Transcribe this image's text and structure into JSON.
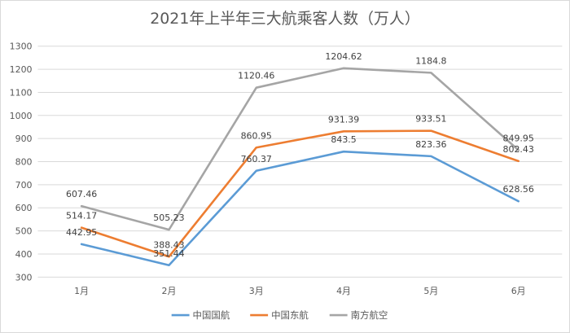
{
  "chart_data": {
    "type": "line",
    "title": "2021年上半年三大航乘客人数（万人）",
    "xlabel": "",
    "ylabel": "",
    "categories": [
      "1月",
      "2月",
      "3月",
      "4月",
      "5月",
      "6月"
    ],
    "ylim": [
      300,
      1300
    ],
    "yticks": [
      300,
      400,
      500,
      600,
      700,
      800,
      900,
      1000,
      1100,
      1200,
      1300
    ],
    "grid": true,
    "legend_position": "bottom",
    "series": [
      {
        "name": "中国国航",
        "color": "#5b9bd5",
        "values": [
          442.95,
          351.44,
          760.37,
          843.5,
          823.36,
          628.56
        ],
        "labels": [
          "442.95",
          "351.44",
          "760.37",
          "843.5",
          "823.36",
          "628.56"
        ]
      },
      {
        "name": "中国东航",
        "color": "#ed7d31",
        "values": [
          514.17,
          388.43,
          860.95,
          931.39,
          933.51,
          802.43
        ],
        "labels": [
          "514.17",
          "388.43",
          "860.95",
          "931.39",
          "933.51",
          "802.43"
        ]
      },
      {
        "name": "南方航空",
        "color": "#a5a5a5",
        "values": [
          607.46,
          505.23,
          1120.46,
          1204.62,
          1184.8,
          849.95
        ],
        "labels": [
          "607.46",
          "505.23",
          "1120.46",
          "1204.62",
          "1184.8",
          "849.95"
        ]
      }
    ]
  }
}
